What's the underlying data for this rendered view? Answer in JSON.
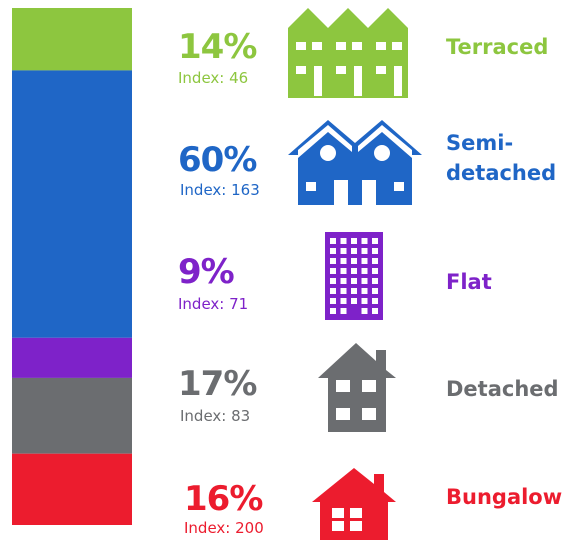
{
  "chart_data": {
    "type": "stacked_bar",
    "series": [
      {
        "name": "Terraced",
        "color": "#8dc63f",
        "values": [
          14
        ],
        "value_labels": [
          "14%"
        ],
        "index_label": "Index: 46"
      },
      {
        "name": "Semi-detached",
        "color": "#1f66c6",
        "values": [
          60
        ],
        "value_labels": [
          "60%"
        ],
        "index_label": "Index: 163"
      },
      {
        "name": "Flat",
        "color": "#7e22c9",
        "values": [
          9
        ],
        "value_labels": [
          "9%"
        ],
        "index_label": "Index: 71"
      },
      {
        "name": "Detached",
        "color": "#6b6d70",
        "values": [
          17
        ],
        "value_labels": [
          "17%"
        ],
        "index_label": "Index: 83"
      },
      {
        "name": "Bungalow",
        "color": "#ec1c2e",
        "values": [
          16
        ],
        "value_labels": [
          "16%"
        ],
        "index_label": "Index: 200"
      }
    ]
  }
}
